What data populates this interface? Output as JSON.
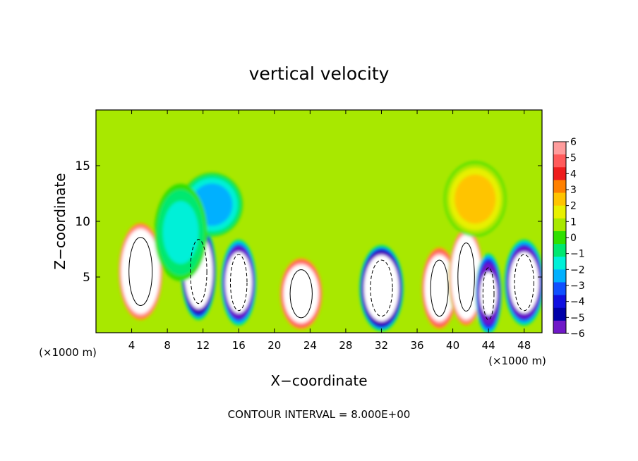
{
  "chart_data": {
    "type": "heatmap",
    "title": "vertical velocity",
    "xlabel": "X−coordinate",
    "ylabel": "Z−coordinate",
    "x_unit_label": "(×1000 m)",
    "y_unit_label": "(×1000 m)",
    "footer": "CONTOUR INTERVAL = 8.000E+00",
    "xlim": [
      0,
      50
    ],
    "ylim": [
      0,
      20
    ],
    "x_ticks": [
      4,
      8,
      12,
      16,
      20,
      24,
      28,
      32,
      36,
      40,
      44,
      48
    ],
    "y_ticks": [
      5,
      10,
      15
    ],
    "colorbar": {
      "ticks": [
        "6",
        "5",
        "4",
        "3",
        "2",
        "1",
        "0",
        "−1",
        "−2",
        "−3",
        "−4",
        "−5",
        "−6"
      ],
      "colors": [
        "#ff9c9c",
        "#ff5a5a",
        "#ee1c1c",
        "#ff8000",
        "#ffc400",
        "#e8f000",
        "#a8e800",
        "#30e000",
        "#00e870",
        "#00f0d8",
        "#00b0ff",
        "#1050ff",
        "#1010e0",
        "#0000a8",
        "#7018c8"
      ]
    },
    "background_value": 0.5,
    "cells": [
      {
        "x": 5.0,
        "z": 5.5,
        "value": 14,
        "width": 4.2,
        "height": 8.5
      },
      {
        "x": 11.5,
        "z": 5.5,
        "value": -12,
        "width": 3.0,
        "height": 8.0
      },
      {
        "x": 16.0,
        "z": 4.5,
        "value": -10,
        "width": 3.0,
        "height": 7.0
      },
      {
        "x": 23.0,
        "z": 3.5,
        "value": 12,
        "width": 4.0,
        "height": 6.0
      },
      {
        "x": 32.0,
        "z": 4.0,
        "value": -12,
        "width": 4.0,
        "height": 7.0
      },
      {
        "x": 38.5,
        "z": 4.0,
        "value": 12,
        "width": 3.2,
        "height": 7.0
      },
      {
        "x": 41.5,
        "z": 5.0,
        "value": 14,
        "width": 3.0,
        "height": 8.5
      },
      {
        "x": 44.0,
        "z": 3.5,
        "value": -8,
        "width": 2.0,
        "height": 6.5
      },
      {
        "x": 48.0,
        "z": 4.5,
        "value": -10,
        "width": 3.5,
        "height": 7.0
      },
      {
        "x": 13.0,
        "z": 11.5,
        "value": -2.5,
        "width": 6.0,
        "height": 5.0
      },
      {
        "x": 42.5,
        "z": 12.0,
        "value": 2.5,
        "width": 6.0,
        "height": 6.0
      },
      {
        "x": 9.5,
        "z": 9.0,
        "value": -1.5,
        "width": 5.0,
        "height": 8.0
      }
    ]
  }
}
